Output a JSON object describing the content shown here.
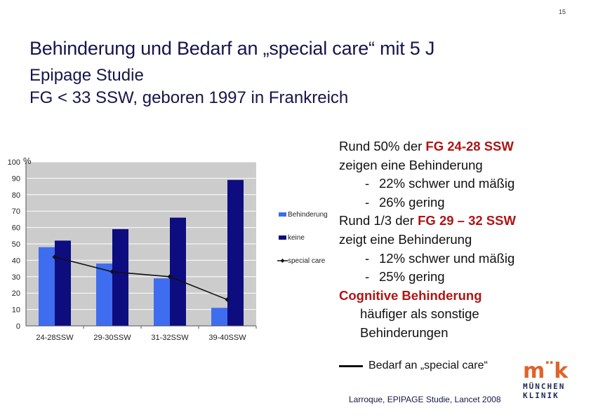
{
  "page_number": "15",
  "title": "Behinderung und Bedarf an „special care“ mit 5 J",
  "subtitle_line1": "Epipage Studie",
  "subtitle_line2": "FG < 33 SSW, geboren 1997 in Frankreich",
  "chart_data": {
    "type": "bar",
    "ylabel": "%",
    "ylim": [
      0,
      100
    ],
    "yticks": [
      "0",
      "10",
      "20",
      "30",
      "40",
      "50",
      "60",
      "70",
      "80",
      "90",
      "100"
    ],
    "categories": [
      "24-28SSW",
      "29-30SSW",
      "31-32SSW",
      "39-40SSW"
    ],
    "series": [
      {
        "name": "Behinderung",
        "kind": "bar",
        "color": "#3f6df0",
        "values": [
          48,
          38,
          29,
          11
        ]
      },
      {
        "name": "keine",
        "kind": "bar",
        "color": "#0d0d80",
        "values": [
          52,
          59,
          66,
          89
        ]
      },
      {
        "name": "special care",
        "kind": "line",
        "color": "#111111",
        "values": [
          42,
          33,
          30,
          16
        ]
      }
    ],
    "grid": true,
    "legend": "right",
    "colors": {
      "plot_background": "#cccccc",
      "gridline": "#ffffff"
    }
  },
  "notes": {
    "l1_pre": "Rund 50% der ",
    "l1_red": "FG 24-28 SSW",
    "l2": "zeigen eine Behinderung",
    "l3_dash": "-",
    "l3": "22% schwer und mäßig",
    "l4_dash": "-",
    "l4": "26% gering",
    "l5_pre": "Rund 1/3 der ",
    "l5_red": "FG 29 – 32 SSW",
    "l6": "zeigt eine Behinderung",
    "l7_dash": "-",
    "l7": "12% schwer und mäßig",
    "l8_dash": "-",
    "l8": "25% gering",
    "l9_red": "Cognitive Behinderung",
    "l10": "häufiger als sonstige",
    "l11": "Behinderungen"
  },
  "legend_line_label": "Bedarf an „special care“",
  "source": "Larroque, EPIPAGE Studie, Lancet 2008",
  "logo": {
    "mark": "m¨k",
    "line1": "MÜNCHEN",
    "line2": "KLINIK",
    "color": "#e0632a"
  }
}
